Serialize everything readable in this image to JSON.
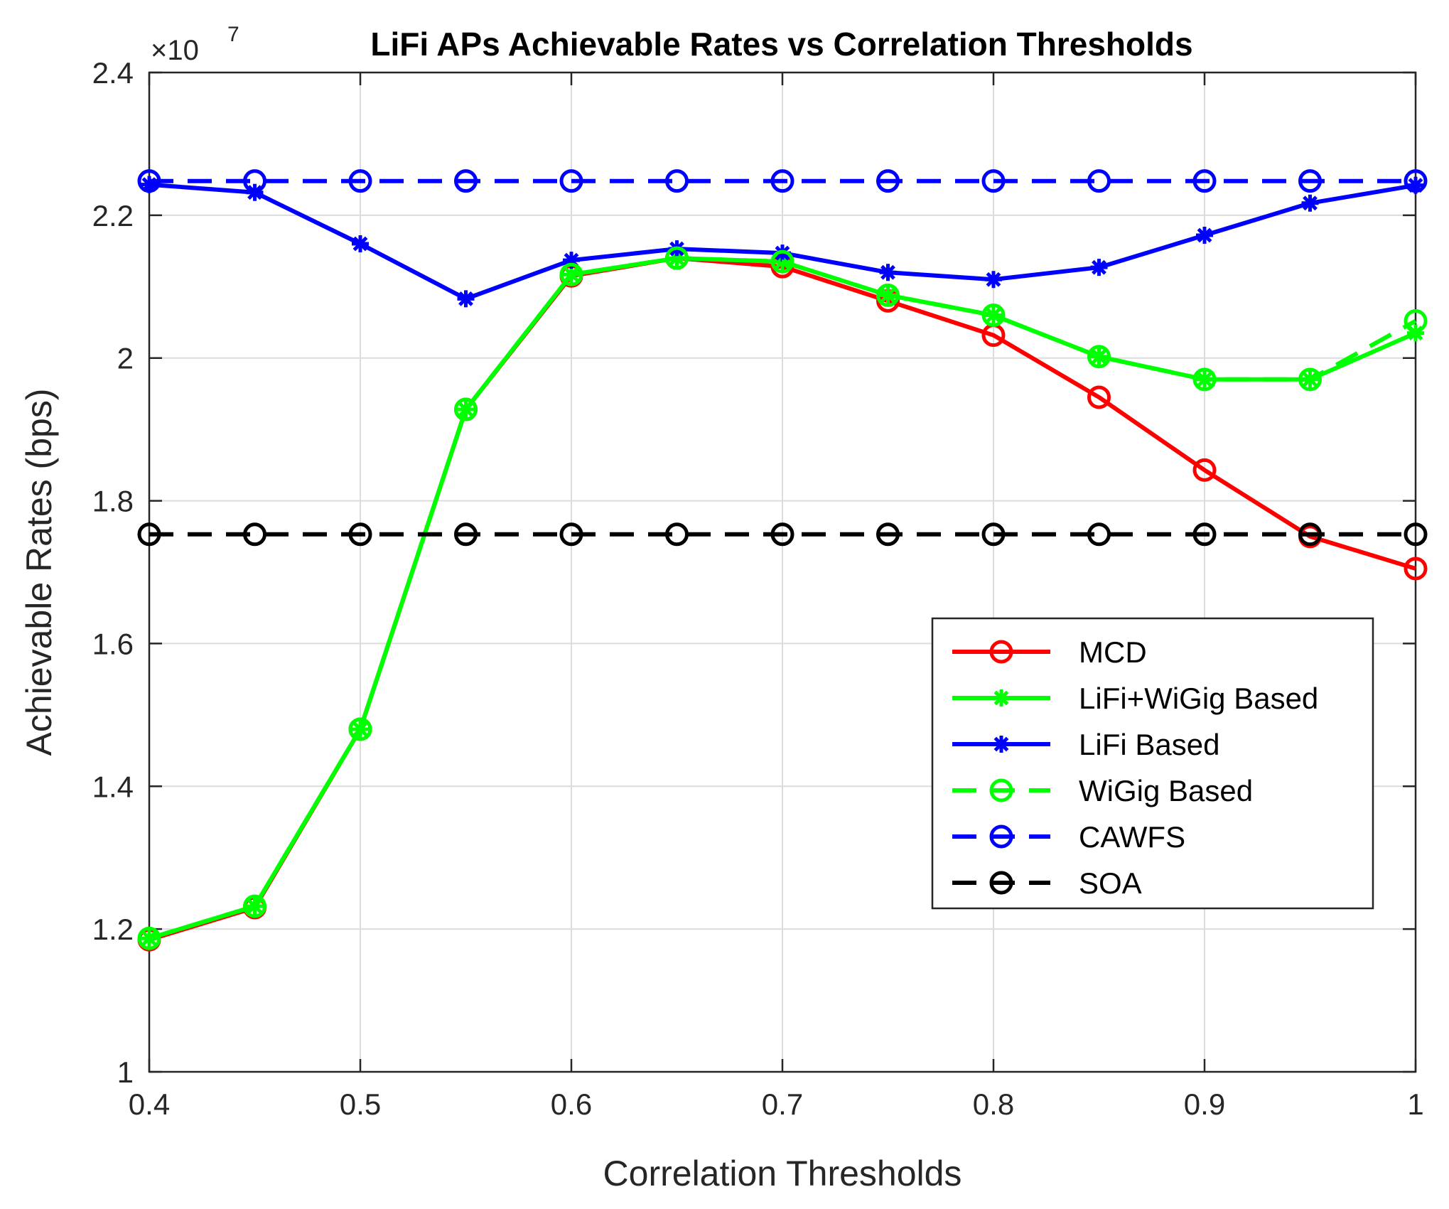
{
  "chart_data": {
    "type": "line",
    "title": "LiFi APs Achievable Rates vs Correlation Thresholds",
    "exponent_base": "×10",
    "exponent_power": "7",
    "xlabel": "Correlation Thresholds",
    "ylabel": "Achievable Rates (bps)",
    "xlim": [
      0.4,
      1.0
    ],
    "ylim": [
      1.0,
      2.4
    ],
    "grid": true,
    "legend_position": "center-right",
    "x": [
      0.4,
      0.45,
      0.5,
      0.55,
      0.6,
      0.65,
      0.7,
      0.75,
      0.8,
      0.85,
      0.9,
      0.95,
      1.0
    ],
    "x_ticks": [
      0.4,
      0.5,
      0.6,
      0.7,
      0.8,
      0.9,
      1.0
    ],
    "x_tick_labels": [
      "0.4",
      "0.5",
      "0.6",
      "0.7",
      "0.8",
      "0.9",
      "1"
    ],
    "y_ticks": [
      1.0,
      1.2,
      1.4,
      1.6,
      1.8,
      2.0,
      2.2,
      2.4
    ],
    "y_tick_labels": [
      "1",
      "1.2",
      "1.4",
      "1.6",
      "1.8",
      "2",
      "2.2",
      "2.4"
    ],
    "series": [
      {
        "name": "MCD",
        "color": "#ff0000",
        "dash": "solid",
        "marker": "circle",
        "values": [
          1.185,
          1.23,
          1.48,
          1.928,
          2.115,
          2.14,
          2.128,
          2.08,
          2.032,
          1.945,
          1.843,
          1.75,
          1.705
        ]
      },
      {
        "name": "LiFi+WiGig Based",
        "color": "#00ff00",
        "dash": "solid",
        "marker": "asterisk",
        "values": [
          1.187,
          1.232,
          1.48,
          1.928,
          2.117,
          2.14,
          2.135,
          2.088,
          2.06,
          2.002,
          1.97,
          1.97,
          2.035
        ]
      },
      {
        "name": "LiFi Based",
        "color": "#0000ff",
        "dash": "solid",
        "marker": "asterisk",
        "values": [
          2.243,
          2.232,
          2.16,
          2.083,
          2.137,
          2.153,
          2.147,
          2.12,
          2.11,
          2.127,
          2.172,
          2.217,
          2.242
        ]
      },
      {
        "name": "WiGig Based",
        "color": "#00ff00",
        "dash": "dashed",
        "marker": "circle",
        "values": [
          1.187,
          1.232,
          1.48,
          1.928,
          2.117,
          2.14,
          2.135,
          2.088,
          2.06,
          2.002,
          1.97,
          1.97,
          2.052
        ]
      },
      {
        "name": "CAWFS",
        "color": "#0000ff",
        "dash": "dashed",
        "marker": "circle",
        "values": [
          2.248,
          2.248,
          2.248,
          2.248,
          2.248,
          2.248,
          2.248,
          2.248,
          2.248,
          2.248,
          2.248,
          2.248,
          2.248
        ]
      },
      {
        "name": "SOA",
        "color": "#000000",
        "dash": "dashed",
        "marker": "circle",
        "values": [
          1.753,
          1.753,
          1.753,
          1.753,
          1.753,
          1.753,
          1.753,
          1.753,
          1.753,
          1.753,
          1.753,
          1.753,
          1.753
        ]
      }
    ]
  }
}
